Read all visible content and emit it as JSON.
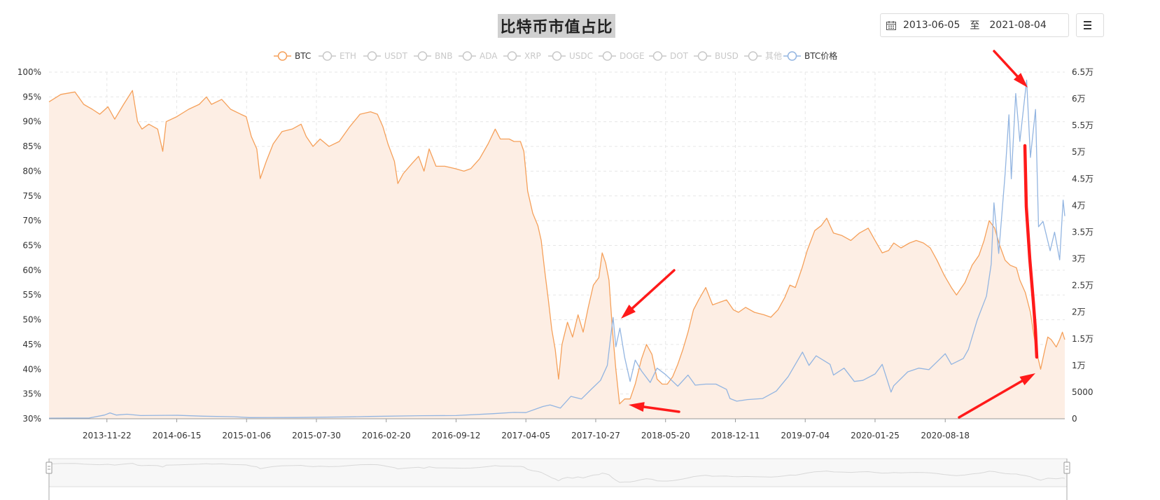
{
  "title": "比特币市值占比",
  "date_range": {
    "start": "2013-06-05",
    "separator": "至",
    "end": "2021-08-04"
  },
  "menu_icon": "hamburger-menu-icon",
  "colors": {
    "btc": "#f5a05a",
    "btc_fill": "#fdeee4",
    "price": "#93b5e1",
    "inactive": "#c8c8c8",
    "arrow": "#ff1a1a"
  },
  "chart_data": {
    "type": "line",
    "title": "比特币市值占比",
    "legend": {
      "position": "top-center",
      "items": [
        {
          "name": "BTC",
          "active": true
        },
        {
          "name": "ETH",
          "active": false
        },
        {
          "name": "USDT",
          "active": false
        },
        {
          "name": "BNB",
          "active": false
        },
        {
          "name": "ADA",
          "active": false
        },
        {
          "name": "XRP",
          "active": false
        },
        {
          "name": "USDC",
          "active": false
        },
        {
          "name": "DOGE",
          "active": false
        },
        {
          "name": "DOT",
          "active": false
        },
        {
          "name": "BUSD",
          "active": false
        },
        {
          "name": "其他",
          "active": false
        },
        {
          "name": "BTC价格",
          "active": true
        }
      ]
    },
    "x_ticks": [
      "2013-11-22",
      "2014-06-15",
      "2015-01-06",
      "2015-07-30",
      "2016-02-20",
      "2016-09-12",
      "2017-04-05",
      "2017-10-27",
      "2018-05-20",
      "2018-12-11",
      "2019-07-04",
      "2020-01-25",
      "2020-08-18"
    ],
    "x_range": [
      "2013-06-05",
      "2021-08-04"
    ],
    "y_left": {
      "ticks": [
        "30%",
        "35%",
        "40%",
        "45%",
        "50%",
        "55%",
        "60%",
        "65%",
        "70%",
        "75%",
        "80%",
        "85%",
        "90%",
        "95%",
        "100%"
      ],
      "range": [
        30,
        100
      ]
    },
    "y_right": {
      "ticks": [
        "0",
        "5000",
        "1万",
        "1.5万",
        "2万",
        "2.5万",
        "3万",
        "3.5万",
        "4万",
        "4.5万",
        "5万",
        "5.5万",
        "6万",
        "6.5万"
      ],
      "range": [
        0,
        65000
      ]
    },
    "grid": true,
    "series": [
      {
        "name": "BTC",
        "axis": "left",
        "area": true,
        "points": [
          [
            "2013-06-05",
            94.0
          ],
          [
            "2013-07-10",
            95.5
          ],
          [
            "2013-08-20",
            96.0
          ],
          [
            "2013-09-15",
            93.5
          ],
          [
            "2013-10-10",
            92.5
          ],
          [
            "2013-11-01",
            91.5
          ],
          [
            "2013-11-25",
            93.0
          ],
          [
            "2013-12-15",
            90.5
          ],
          [
            "2014-01-10",
            93.5
          ],
          [
            "2014-02-05",
            96.3
          ],
          [
            "2014-02-20",
            90.0
          ],
          [
            "2014-03-05",
            88.5
          ],
          [
            "2014-03-25",
            89.5
          ],
          [
            "2014-04-20",
            88.5
          ],
          [
            "2014-05-05",
            84.0
          ],
          [
            "2014-05-15",
            90.0
          ],
          [
            "2014-06-15",
            91.0
          ],
          [
            "2014-07-20",
            92.5
          ],
          [
            "2014-08-20",
            93.5
          ],
          [
            "2014-09-10",
            95.0
          ],
          [
            "2014-09-25",
            93.5
          ],
          [
            "2014-10-25",
            94.5
          ],
          [
            "2014-11-20",
            92.5
          ],
          [
            "2014-12-20",
            91.5
          ],
          [
            "2015-01-05",
            91.0
          ],
          [
            "2015-01-20",
            87.0
          ],
          [
            "2015-02-05",
            84.5
          ],
          [
            "2015-02-15",
            78.5
          ],
          [
            "2015-03-05",
            82.0
          ],
          [
            "2015-03-25",
            85.5
          ],
          [
            "2015-04-20",
            88.0
          ],
          [
            "2015-05-20",
            88.5
          ],
          [
            "2015-06-15",
            89.5
          ],
          [
            "2015-06-30",
            87.0
          ],
          [
            "2015-07-20",
            85.0
          ],
          [
            "2015-08-10",
            86.5
          ],
          [
            "2015-09-05",
            85.0
          ],
          [
            "2015-10-05",
            86.0
          ],
          [
            "2015-11-05",
            89.0
          ],
          [
            "2015-12-05",
            91.5
          ],
          [
            "2016-01-05",
            92.0
          ],
          [
            "2016-01-25",
            91.5
          ],
          [
            "2016-02-10",
            89.0
          ],
          [
            "2016-02-25",
            85.5
          ],
          [
            "2016-03-15",
            82.0
          ],
          [
            "2016-03-25",
            77.5
          ],
          [
            "2016-04-10",
            79.5
          ],
          [
            "2016-05-05",
            81.5
          ],
          [
            "2016-05-25",
            83.0
          ],
          [
            "2016-06-10",
            80.0
          ],
          [
            "2016-06-25",
            84.5
          ],
          [
            "2016-07-15",
            81.0
          ],
          [
            "2016-08-10",
            81.0
          ],
          [
            "2016-09-10",
            80.5
          ],
          [
            "2016-10-05",
            80.0
          ],
          [
            "2016-10-25",
            80.5
          ],
          [
            "2016-11-20",
            82.5
          ],
          [
            "2016-12-15",
            85.5
          ],
          [
            "2017-01-05",
            88.5
          ],
          [
            "2017-01-20",
            86.5
          ],
          [
            "2017-02-15",
            86.5
          ],
          [
            "2017-03-01",
            86.0
          ],
          [
            "2017-03-20",
            86.0
          ],
          [
            "2017-03-30",
            84.0
          ],
          [
            "2017-04-10",
            76.0
          ],
          [
            "2017-04-25",
            71.5
          ],
          [
            "2017-05-10",
            69.0
          ],
          [
            "2017-05-20",
            66.0
          ],
          [
            "2017-05-30",
            60.0
          ],
          [
            "2017-06-10",
            54.0
          ],
          [
            "2017-06-20",
            48.0
          ],
          [
            "2017-06-30",
            44.0
          ],
          [
            "2017-07-10",
            38.0
          ],
          [
            "2017-07-20",
            45.0
          ],
          [
            "2017-08-05",
            49.5
          ],
          [
            "2017-08-20",
            46.5
          ],
          [
            "2017-09-05",
            51.0
          ],
          [
            "2017-09-20",
            47.5
          ],
          [
            "2017-10-05",
            52.5
          ],
          [
            "2017-10-20",
            57.0
          ],
          [
            "2017-11-05",
            58.5
          ],
          [
            "2017-11-15",
            63.5
          ],
          [
            "2017-11-25",
            61.5
          ],
          [
            "2017-12-05",
            58.0
          ],
          [
            "2017-12-15",
            48.0
          ],
          [
            "2017-12-25",
            40.0
          ],
          [
            "2018-01-05",
            33.0
          ],
          [
            "2018-01-20",
            34.0
          ],
          [
            "2018-02-05",
            34.0
          ],
          [
            "2018-02-20",
            37.0
          ],
          [
            "2018-03-10",
            42.0
          ],
          [
            "2018-03-25",
            45.0
          ],
          [
            "2018-04-10",
            43.0
          ],
          [
            "2018-04-25",
            38.0
          ],
          [
            "2018-05-10",
            37.0
          ],
          [
            "2018-05-25",
            37.0
          ],
          [
            "2018-06-10",
            38.5
          ],
          [
            "2018-06-25",
            41.0
          ],
          [
            "2018-07-10",
            44.0
          ],
          [
            "2018-07-25",
            47.5
          ],
          [
            "2018-08-10",
            52.0
          ],
          [
            "2018-08-25",
            54.0
          ],
          [
            "2018-09-15",
            56.5
          ],
          [
            "2018-10-05",
            53.0
          ],
          [
            "2018-10-25",
            53.5
          ],
          [
            "2018-11-15",
            54.0
          ],
          [
            "2018-12-05",
            52.0
          ],
          [
            "2018-12-20",
            51.5
          ],
          [
            "2019-01-10",
            52.5
          ],
          [
            "2019-02-05",
            51.5
          ],
          [
            "2019-03-05",
            51.0
          ],
          [
            "2019-03-25",
            50.5
          ],
          [
            "2019-04-15",
            52.0
          ],
          [
            "2019-05-05",
            54.5
          ],
          [
            "2019-05-20",
            57.0
          ],
          [
            "2019-06-05",
            56.5
          ],
          [
            "2019-06-25",
            60.5
          ],
          [
            "2019-07-10",
            64.0
          ],
          [
            "2019-08-01",
            68.0
          ],
          [
            "2019-08-20",
            69.0
          ],
          [
            "2019-09-05",
            70.5
          ],
          [
            "2019-09-25",
            67.5
          ],
          [
            "2019-10-20",
            67.0
          ],
          [
            "2019-11-15",
            66.0
          ],
          [
            "2019-12-10",
            67.5
          ],
          [
            "2020-01-05",
            68.5
          ],
          [
            "2020-01-25",
            66.0
          ],
          [
            "2020-02-15",
            63.5
          ],
          [
            "2020-03-05",
            64.0
          ],
          [
            "2020-03-20",
            65.5
          ],
          [
            "2020-04-10",
            64.5
          ],
          [
            "2020-05-05",
            65.5
          ],
          [
            "2020-05-25",
            66.0
          ],
          [
            "2020-06-15",
            65.5
          ],
          [
            "2020-07-05",
            64.5
          ],
          [
            "2020-07-25",
            62.0
          ],
          [
            "2020-08-15",
            59.0
          ],
          [
            "2020-09-05",
            56.5
          ],
          [
            "2020-09-20",
            55.0
          ],
          [
            "2020-10-15",
            57.5
          ],
          [
            "2020-11-05",
            61.0
          ],
          [
            "2020-11-25",
            63.0
          ],
          [
            "2020-12-10",
            66.0
          ],
          [
            "2020-12-25",
            70.0
          ],
          [
            "2021-01-10",
            68.5
          ],
          [
            "2021-01-25",
            65.0
          ],
          [
            "2021-02-10",
            62.0
          ],
          [
            "2021-02-25",
            61.0
          ],
          [
            "2021-03-15",
            60.5
          ],
          [
            "2021-03-25",
            58.0
          ],
          [
            "2021-04-10",
            55.5
          ],
          [
            "2021-04-25",
            51.5
          ],
          [
            "2021-05-05",
            47.0
          ],
          [
            "2021-05-15",
            43.0
          ],
          [
            "2021-05-25",
            40.0
          ],
          [
            "2021-06-05",
            43.5
          ],
          [
            "2021-06-15",
            46.5
          ],
          [
            "2021-06-25",
            46.0
          ],
          [
            "2021-07-10",
            44.5
          ],
          [
            "2021-07-20",
            46.0
          ],
          [
            "2021-07-28",
            47.5
          ],
          [
            "2021-08-04",
            46.0
          ]
        ]
      },
      {
        "name": "BTC价格",
        "axis": "right",
        "area": false,
        "points": [
          [
            "2013-06-05",
            120
          ],
          [
            "2013-10-01",
            140
          ],
          [
            "2013-11-15",
            700
          ],
          [
            "2013-12-01",
            1100
          ],
          [
            "2013-12-20",
            700
          ],
          [
            "2014-01-20",
            850
          ],
          [
            "2014-03-01",
            600
          ],
          [
            "2014-06-15",
            650
          ],
          [
            "2014-09-01",
            480
          ],
          [
            "2014-12-01",
            380
          ],
          [
            "2015-01-15",
            220
          ],
          [
            "2015-06-01",
            230
          ],
          [
            "2015-11-01",
            350
          ],
          [
            "2016-01-01",
            430
          ],
          [
            "2016-06-01",
            580
          ],
          [
            "2016-09-12",
            610
          ],
          [
            "2016-12-31",
            960
          ],
          [
            "2017-03-01",
            1200
          ],
          [
            "2017-04-05",
            1150
          ],
          [
            "2017-05-25",
            2300
          ],
          [
            "2017-06-15",
            2600
          ],
          [
            "2017-07-15",
            2000
          ],
          [
            "2017-08-15",
            4200
          ],
          [
            "2017-09-15",
            3700
          ],
          [
            "2017-10-15",
            5600
          ],
          [
            "2017-11-10",
            7200
          ],
          [
            "2017-11-30",
            10000
          ],
          [
            "2017-12-10",
            15500
          ],
          [
            "2017-12-17",
            19000
          ],
          [
            "2017-12-25",
            13500
          ],
          [
            "2018-01-06",
            17000
          ],
          [
            "2018-01-20",
            11500
          ],
          [
            "2018-02-05",
            7000
          ],
          [
            "2018-02-20",
            11000
          ],
          [
            "2018-03-10",
            9000
          ],
          [
            "2018-04-05",
            6800
          ],
          [
            "2018-04-25",
            9500
          ],
          [
            "2018-05-20",
            8300
          ],
          [
            "2018-06-25",
            6100
          ],
          [
            "2018-07-25",
            8200
          ],
          [
            "2018-08-15",
            6300
          ],
          [
            "2018-09-15",
            6500
          ],
          [
            "2018-10-15",
            6500
          ],
          [
            "2018-11-15",
            5500
          ],
          [
            "2018-11-25",
            3800
          ],
          [
            "2018-12-15",
            3300
          ],
          [
            "2019-01-15",
            3600
          ],
          [
            "2019-03-01",
            3800
          ],
          [
            "2019-04-10",
            5200
          ],
          [
            "2019-05-15",
            7900
          ],
          [
            "2019-06-26",
            12500
          ],
          [
            "2019-07-15",
            10000
          ],
          [
            "2019-08-05",
            11800
          ],
          [
            "2019-09-15",
            10200
          ],
          [
            "2019-09-25",
            8200
          ],
          [
            "2019-10-26",
            9500
          ],
          [
            "2019-11-25",
            7000
          ],
          [
            "2019-12-20",
            7200
          ],
          [
            "2020-01-25",
            8400
          ],
          [
            "2020-02-15",
            10200
          ],
          [
            "2020-03-12",
            5000
          ],
          [
            "2020-03-20",
            6200
          ],
          [
            "2020-04-30",
            8800
          ],
          [
            "2020-06-01",
            9500
          ],
          [
            "2020-07-01",
            9200
          ],
          [
            "2020-07-30",
            11000
          ],
          [
            "2020-08-18",
            12200
          ],
          [
            "2020-09-05",
            10200
          ],
          [
            "2020-10-10",
            11300
          ],
          [
            "2020-10-25",
            13000
          ],
          [
            "2020-11-20",
            18500
          ],
          [
            "2020-12-17",
            23000
          ],
          [
            "2020-12-31",
            29000
          ],
          [
            "2021-01-08",
            40500
          ],
          [
            "2021-01-22",
            31000
          ],
          [
            "2021-02-10",
            46000
          ],
          [
            "2021-02-21",
            57000
          ],
          [
            "2021-02-28",
            45000
          ],
          [
            "2021-03-13",
            61000
          ],
          [
            "2021-03-25",
            52000
          ],
          [
            "2021-04-14",
            63500
          ],
          [
            "2021-04-25",
            49000
          ],
          [
            "2021-05-10",
            58000
          ],
          [
            "2021-05-19",
            36000
          ],
          [
            "2021-06-01",
            37000
          ],
          [
            "2021-06-22",
            31500
          ],
          [
            "2021-07-05",
            35000
          ],
          [
            "2021-07-20",
            29800
          ],
          [
            "2021-07-30",
            41000
          ],
          [
            "2021-08-04",
            38000
          ]
        ]
      }
    ]
  }
}
